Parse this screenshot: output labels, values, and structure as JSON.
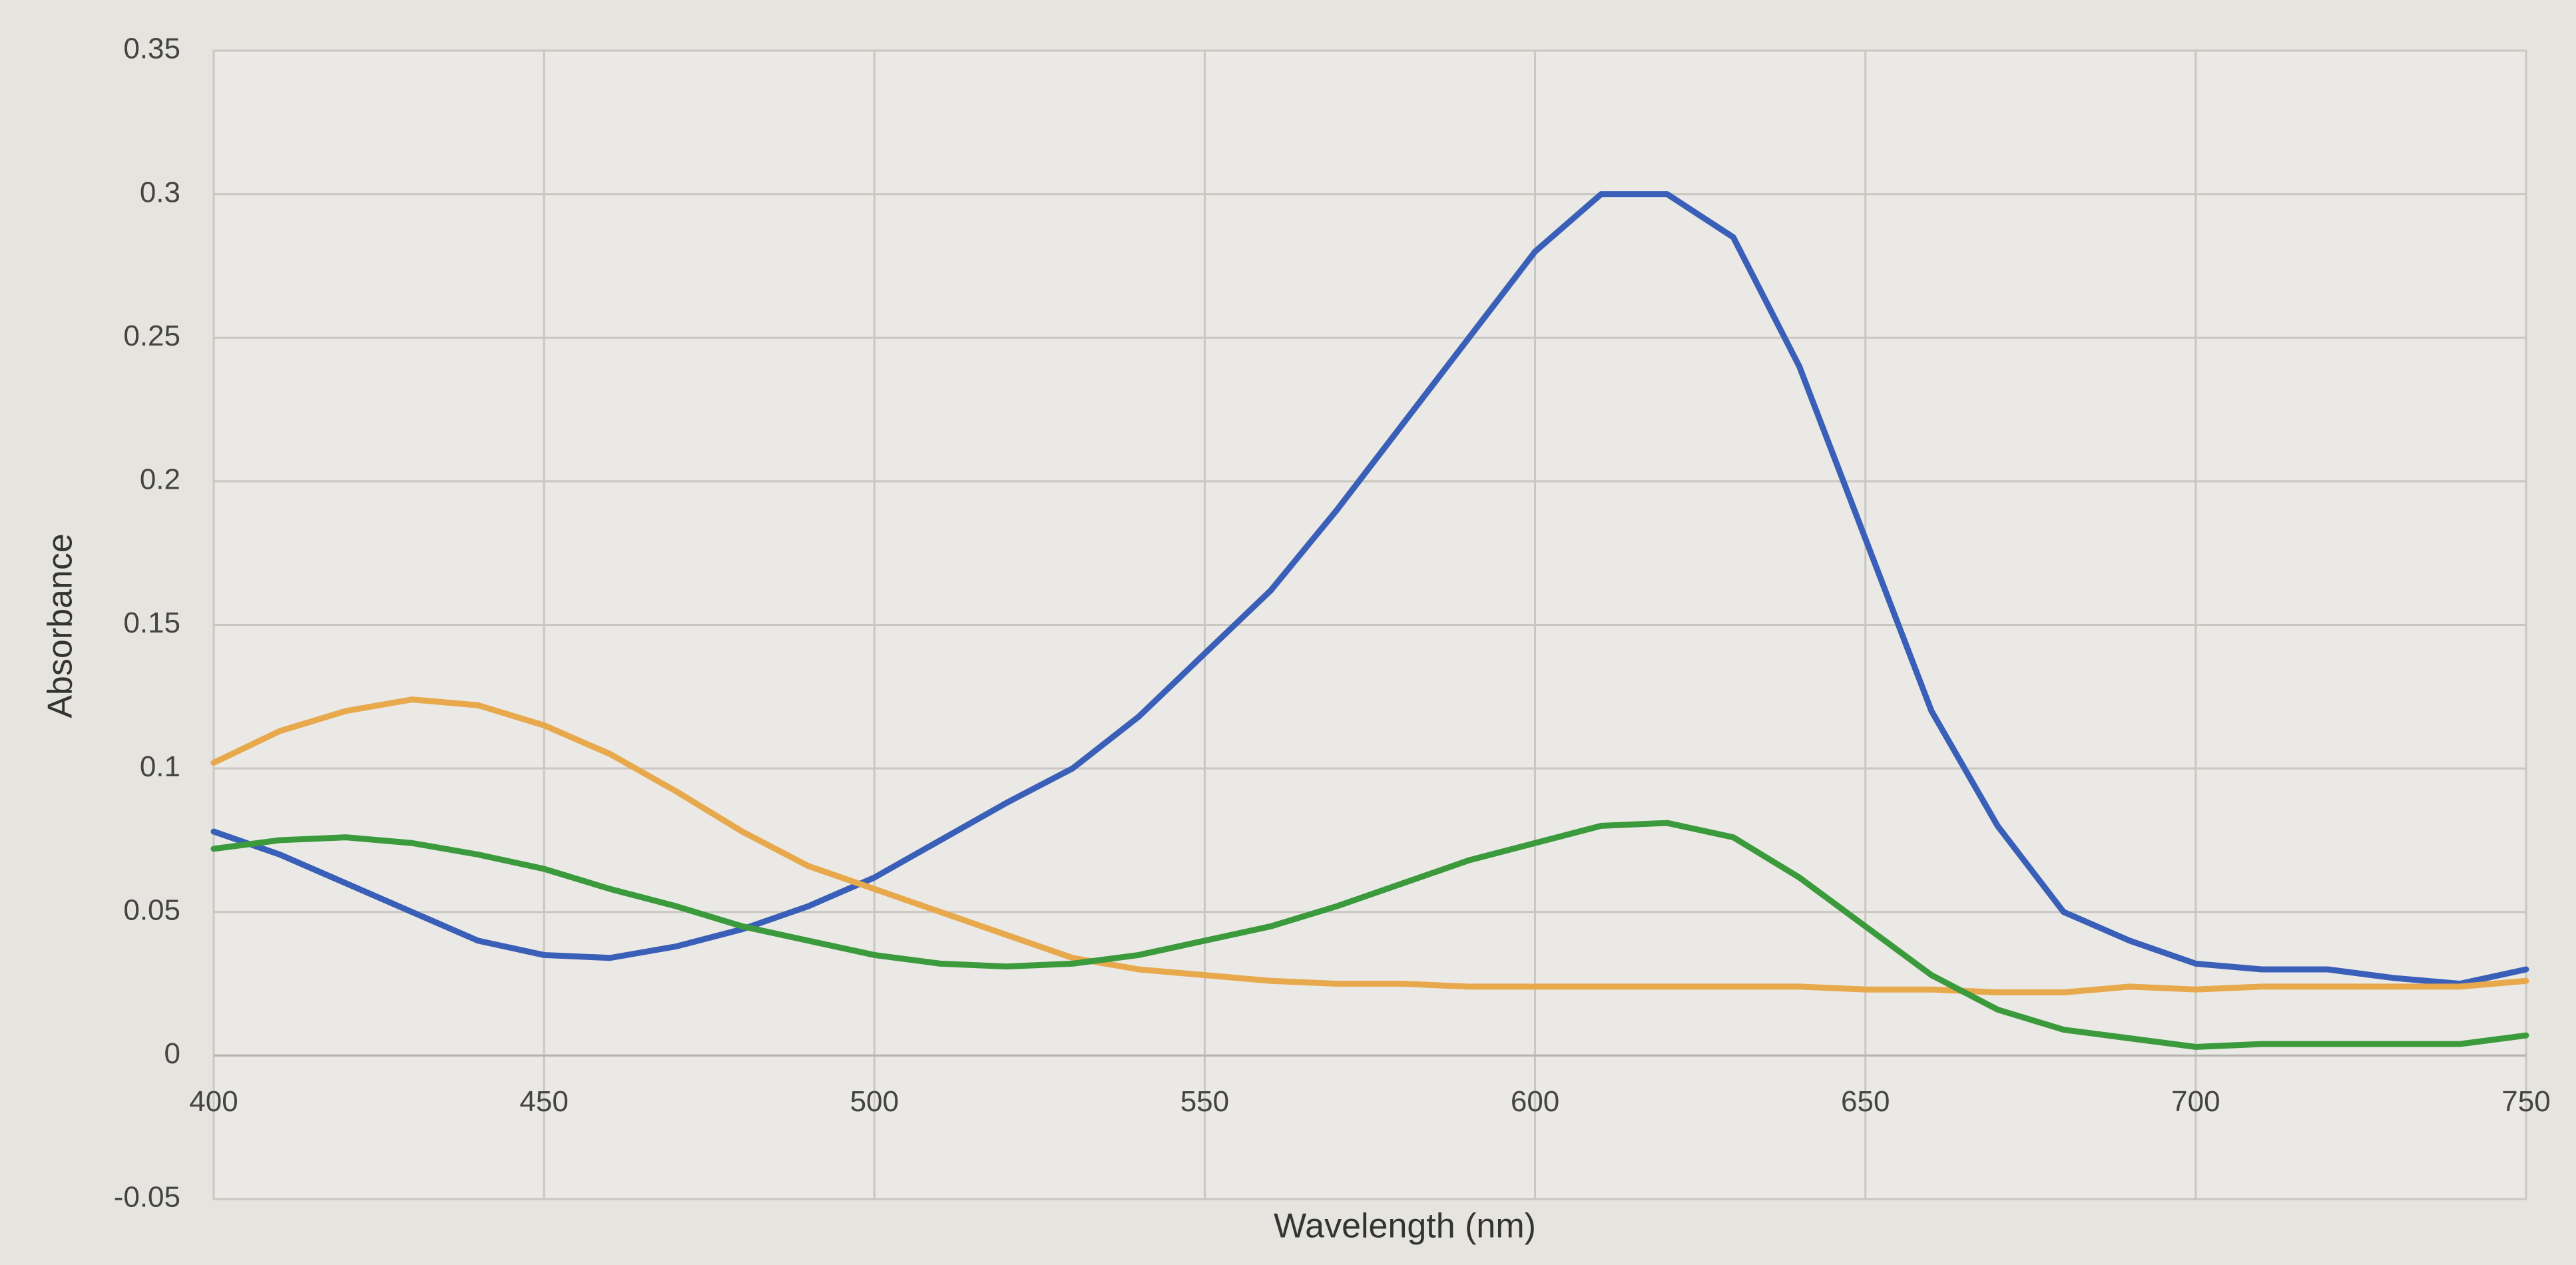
{
  "chart_data": {
    "type": "line",
    "x_label": "Wavelength (nm)",
    "y_label": "Absorbance",
    "x": [
      400,
      410,
      420,
      430,
      440,
      450,
      460,
      470,
      480,
      490,
      500,
      510,
      520,
      530,
      540,
      550,
      560,
      570,
      580,
      590,
      600,
      610,
      620,
      630,
      640,
      650,
      660,
      670,
      680,
      690,
      700,
      710,
      720,
      730,
      740,
      750
    ],
    "series": [
      {
        "color": "#3a5fb8",
        "values": [
          0.078,
          0.07,
          0.06,
          0.05,
          0.04,
          0.035,
          0.034,
          0.038,
          0.044,
          0.052,
          0.062,
          0.075,
          0.088,
          0.1,
          0.118,
          0.14,
          0.162,
          0.19,
          0.22,
          0.25,
          0.28,
          0.3,
          0.3,
          0.285,
          0.24,
          0.18,
          0.12,
          0.08,
          0.05,
          0.04,
          0.032,
          0.03,
          0.03,
          0.027,
          0.025,
          0.03
        ]
      },
      {
        "color": "#e8a84c",
        "values": [
          0.102,
          0.113,
          0.12,
          0.124,
          0.122,
          0.115,
          0.105,
          0.092,
          0.078,
          0.066,
          0.058,
          0.05,
          0.042,
          0.034,
          0.03,
          0.028,
          0.026,
          0.025,
          0.025,
          0.024,
          0.024,
          0.024,
          0.024,
          0.024,
          0.024,
          0.023,
          0.023,
          0.022,
          0.022,
          0.024,
          0.023,
          0.024,
          0.024,
          0.024,
          0.024,
          0.026
        ]
      },
      {
        "color": "#3a9a3c",
        "values": [
          0.072,
          0.075,
          0.076,
          0.074,
          0.07,
          0.065,
          0.058,
          0.052,
          0.045,
          0.04,
          0.035,
          0.032,
          0.031,
          0.032,
          0.035,
          0.04,
          0.045,
          0.052,
          0.06,
          0.068,
          0.074,
          0.08,
          0.081,
          0.076,
          0.062,
          0.045,
          0.028,
          0.016,
          0.009,
          0.006,
          0.003,
          0.004,
          0.004,
          0.004,
          0.004,
          0.007
        ]
      }
    ],
    "xlim": [
      400,
      750
    ],
    "xticks": [
      400,
      450,
      500,
      550,
      600,
      650,
      700,
      750
    ],
    "ylim": [
      -0.05,
      0.35
    ],
    "yticks": [
      -0.05,
      0,
      0.05,
      0.1,
      0.15,
      0.2,
      0.25,
      0.3,
      0.35
    ],
    "grid": true
  }
}
